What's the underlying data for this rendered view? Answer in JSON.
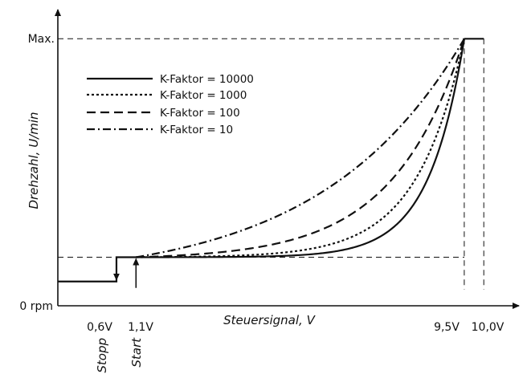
{
  "chart_data": {
    "type": "line",
    "xlabel": "Steuersignal, V",
    "ylabel": "Drehzahl, U/min",
    "y_ticks": {
      "max": "Max.",
      "zero": "0 rpm"
    },
    "x_ticks": [
      "0,6V",
      "1,1V",
      "9,5V",
      "10,0V"
    ],
    "x_tick_values": [
      0.6,
      1.1,
      9.5,
      10.0
    ],
    "markers": {
      "stop": "Stopp",
      "start": "Start"
    },
    "xlim": [
      -0.9,
      10.9
    ],
    "ylim": [
      -0.1,
      1.12
    ],
    "min_level": 0.1,
    "stop_voltage": 0.6,
    "start_voltage": 1.1,
    "full_voltage": 9.5,
    "end_voltage": 10.0,
    "series": [
      {
        "name": "K-Faktor = 10000",
        "k": 10000,
        "dash": ""
      },
      {
        "name": "K-Faktor = 1000",
        "k": 1000,
        "dash": "3,3"
      },
      {
        "name": "K-Faktor = 100",
        "k": 100,
        "dash": "11,6"
      },
      {
        "name": "K-Faktor = 10",
        "k": 10,
        "dash": "10,4,2,4"
      }
    ],
    "grid": false,
    "legend_position": "top-left"
  }
}
